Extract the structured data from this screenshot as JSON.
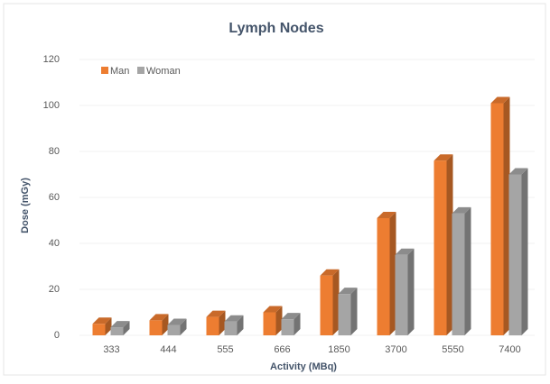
{
  "chart_data": {
    "type": "bar",
    "title": "Lymph Nodes",
    "x_label": "Activity (MBq)",
    "y_label": "Dose (mGy)",
    "categories": [
      "333",
      "444",
      "555",
      "666",
      "1850",
      "3700",
      "5550",
      "7400"
    ],
    "series": [
      {
        "name": "Man",
        "color": "#ed7d31",
        "values": [
          5,
          6.5,
          8,
          10,
          26,
          51,
          76,
          101
        ]
      },
      {
        "name": "Woman",
        "color": "#a5a5a5",
        "values": [
          3.5,
          4.5,
          6,
          7,
          18,
          35,
          53,
          70
        ]
      }
    ],
    "ylim": [
      0,
      120
    ],
    "yticks": [
      0,
      20,
      40,
      60,
      80,
      100,
      120
    ],
    "grid": true,
    "legend": "top-left"
  }
}
